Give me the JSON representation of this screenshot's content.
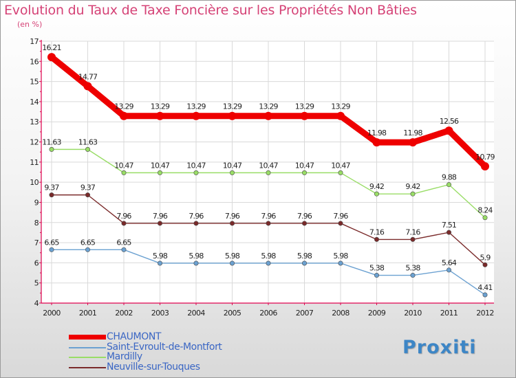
{
  "header": {
    "title": "Evolution du Taux de Taxe Foncière sur les Propriétés Non Bâties",
    "unit": "(en %)"
  },
  "logo": {
    "text": "Proxiti"
  },
  "colors": {
    "title": "#d54276",
    "legend_text": "#3a66c4",
    "axis": "#e0004d",
    "grid": "#d9d9d9"
  },
  "chart_data": {
    "type": "line",
    "title": "Evolution du Taux de Taxe Foncière sur les Propriétés Non Bâties",
    "ylabel": "(en %)",
    "xlabel": "",
    "ylim": [
      4,
      17
    ],
    "yticks": [
      4,
      5,
      6,
      7,
      8,
      9,
      10,
      11,
      12,
      13,
      14,
      15,
      16,
      17
    ],
    "categories": [
      "2000",
      "2001",
      "2002",
      "2003",
      "2004",
      "2005",
      "2006",
      "2007",
      "2008",
      "2009",
      "2010",
      "2011",
      "2012"
    ],
    "series": [
      {
        "name": "CHAUMONT",
        "color": "#ee0000",
        "emphasis": true,
        "values": [
          16.21,
          14.77,
          13.29,
          13.29,
          13.29,
          13.29,
          13.29,
          13.29,
          13.29,
          11.98,
          11.98,
          12.56,
          10.79
        ],
        "labels": [
          "16.21",
          "14.77",
          "13.29",
          "13.29",
          "13.29",
          "13.29",
          "13.29",
          "13.29",
          "13.29",
          "11.98",
          "11.98",
          "12.56",
          "10.79"
        ]
      },
      {
        "name": "Saint-Evroult-de-Montfort",
        "color": "#6ba1d1",
        "values": [
          6.65,
          6.65,
          6.65,
          5.98,
          5.98,
          5.98,
          5.98,
          5.98,
          5.98,
          5.38,
          5.38,
          5.64,
          4.41
        ],
        "labels": [
          "6.65",
          "6.65",
          "6.65",
          "5.98",
          "5.98",
          "5.98",
          "5.98",
          "5.98",
          "5.98",
          "5.38",
          "5.38",
          "5.64",
          "4.41"
        ]
      },
      {
        "name": "Mardilly",
        "color": "#99dd66",
        "values": [
          11.63,
          11.63,
          10.47,
          10.47,
          10.47,
          10.47,
          10.47,
          10.47,
          10.47,
          9.42,
          9.42,
          9.88,
          8.24
        ],
        "labels": [
          "11.63",
          "11.63",
          "10.47",
          "10.47",
          "10.47",
          "10.47",
          "10.47",
          "10.47",
          "10.47",
          "9.42",
          "9.42",
          "9.88",
          "8.24"
        ]
      },
      {
        "name": "Neuville-sur-Touques",
        "color": "#7a2a2a",
        "values": [
          9.37,
          9.37,
          7.96,
          7.96,
          7.96,
          7.96,
          7.96,
          7.96,
          7.96,
          7.16,
          7.16,
          7.51,
          5.9
        ],
        "labels": [
          "9.37",
          "9.37",
          "7.96",
          "7.96",
          "7.96",
          "7.96",
          "7.96",
          "7.96",
          "7.96",
          "7.16",
          "7.16",
          "7.51",
          "5.9"
        ]
      }
    ],
    "legend_position": "bottom-left",
    "grid": true
  }
}
